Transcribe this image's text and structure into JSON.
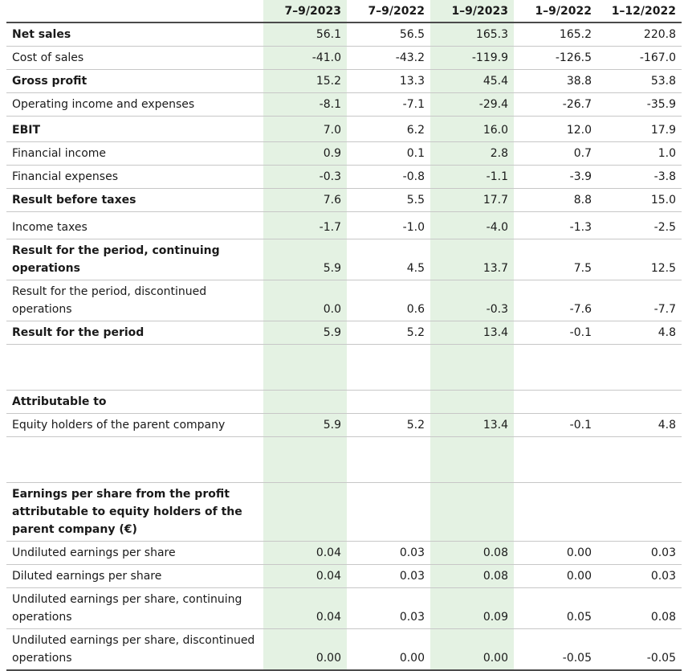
{
  "columns": [
    "7–9/2023",
    "7–9/2022",
    "1–9/2023",
    "1–9/2022",
    "1–12/2022"
  ],
  "rows": [
    {
      "label": "Net sales",
      "bold": true,
      "values": [
        "56.1",
        "56.5",
        "165.3",
        "165.2",
        "220.8"
      ]
    },
    {
      "label": "Cost of sales",
      "bold": false,
      "values": [
        "-41.0",
        "-43.2",
        "-119.9",
        "-126.5",
        "-167.0"
      ]
    },
    {
      "label": "Gross profit",
      "bold": true,
      "values": [
        "15.2",
        "13.3",
        "45.4",
        "38.8",
        "53.8"
      ]
    },
    {
      "label": "Operating income and expenses",
      "bold": false,
      "values": [
        "-8.1",
        "-7.1",
        "-29.4",
        "-26.7",
        "-35.9"
      ]
    },
    {
      "label": "EBIT",
      "bold": true,
      "values": [
        "7.0",
        "6.2",
        "16.0",
        "12.0",
        "17.9"
      ]
    },
    {
      "label": "Financial income",
      "bold": false,
      "values": [
        "0.9",
        "0.1",
        "2.8",
        "0.7",
        "1.0"
      ]
    },
    {
      "label": "Financial expenses",
      "bold": false,
      "values": [
        "-0.3",
        "-0.8",
        "-1.1",
        "-3.9",
        "-3.8"
      ]
    },
    {
      "label": "Result before taxes",
      "bold": true,
      "values": [
        "7.6",
        "5.5",
        "17.7",
        "8.8",
        "15.0"
      ]
    },
    {
      "label": "Income taxes",
      "bold": false,
      "values": [
        "-1.7",
        "-1.0",
        "-4.0",
        "-1.3",
        "-2.5"
      ]
    },
    {
      "label": "Result for the period, continuing operations",
      "bold": true,
      "values": [
        "5.9",
        "4.5",
        "13.7",
        "7.5",
        "12.5"
      ]
    },
    {
      "label": "Result for the period, discontinued operations",
      "bold": false,
      "values": [
        "0.0",
        "0.6",
        "-0.3",
        "-7.6",
        "-7.7"
      ]
    },
    {
      "label": "Result for the period",
      "bold": true,
      "values": [
        "5.9",
        "5.2",
        "13.4",
        "-0.1",
        "4.8"
      ]
    },
    {
      "label": "",
      "bold": false,
      "values": [
        "",
        "",
        "",
        "",
        ""
      ]
    },
    {
      "label": "Attributable to",
      "bold": true,
      "values": [
        "",
        "",
        "",
        "",
        ""
      ]
    },
    {
      "label": "Equity holders of the parent company",
      "bold": false,
      "values": [
        "5.9",
        "5.2",
        "13.4",
        "-0.1",
        "4.8"
      ]
    },
    {
      "label": "",
      "bold": false,
      "values": [
        "",
        "",
        "",
        "",
        ""
      ]
    },
    {
      "label": "Earnings per share from the profit attributable to equity holders of the parent company (€)",
      "bold": true,
      "values": [
        "",
        "",
        "",
        "",
        ""
      ]
    },
    {
      "label": "Undiluted earnings per share",
      "bold": false,
      "values": [
        "0.04",
        "0.03",
        "0.08",
        "0.00",
        "0.03"
      ]
    },
    {
      "label": "Diluted earnings per share",
      "bold": false,
      "values": [
        "0.04",
        "0.03",
        "0.08",
        "0.00",
        "0.03"
      ]
    },
    {
      "label": "Undiluted earnings per share, continuing operations",
      "bold": false,
      "values": [
        "0.04",
        "0.03",
        "0.09",
        "0.05",
        "0.08"
      ]
    },
    {
      "label": "Undiluted earnings per share, discontinued operations",
      "bold": false,
      "values": [
        "0.00",
        "0.00",
        "0.00",
        "-0.05",
        "-0.05"
      ]
    }
  ],
  "style": {
    "highlight_color": "#e4f2e3",
    "rule_color": "#c7c7c7",
    "header_rule_color": "#4b4b4b"
  }
}
